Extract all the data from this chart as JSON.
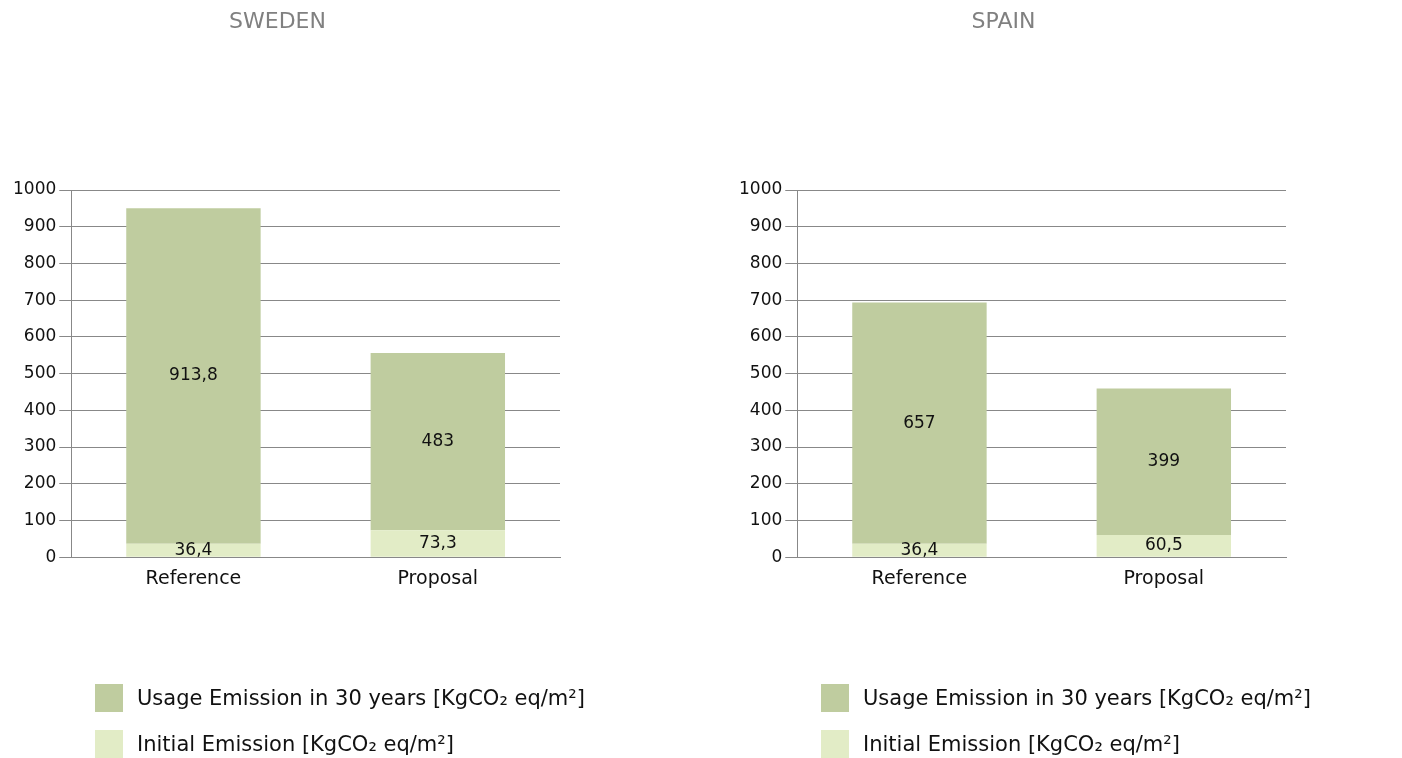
{
  "chart_data": [
    {
      "type": "bar",
      "title": "SWEDEN",
      "categories": [
        "Reference",
        "Proposal"
      ],
      "stacked": true,
      "ylim": [
        0,
        1000
      ],
      "yticks": [
        0,
        100,
        200,
        300,
        400,
        500,
        600,
        700,
        800,
        900,
        1000
      ],
      "grid": "y",
      "legend": "bottom",
      "series": [
        {
          "name": "Initial Emission [KgCO₂ eq/m²]",
          "color": "#e2ecc6",
          "values": [
            36.4,
            73.3
          ],
          "value_labels": [
            "36,4",
            "73,3"
          ]
        },
        {
          "name": "Usage Emission in 30 years [KgCO₂ eq/m²]",
          "color": "#bfcc9f",
          "values": [
            913.8,
            483
          ],
          "value_labels": [
            "913,8",
            "483"
          ]
        }
      ]
    },
    {
      "type": "bar",
      "title": "SPAIN",
      "categories": [
        "Reference",
        "Proposal"
      ],
      "stacked": true,
      "ylim": [
        0,
        1000
      ],
      "yticks": [
        0,
        100,
        200,
        300,
        400,
        500,
        600,
        700,
        800,
        900,
        1000
      ],
      "grid": "y",
      "legend": "bottom",
      "series": [
        {
          "name": "Initial Emission [KgCO₂ eq/m²]",
          "color": "#e2ecc6",
          "values": [
            36.4,
            60.5
          ],
          "value_labels": [
            "36,4",
            "60,5"
          ]
        },
        {
          "name": "Usage Emission in 30 years [KgCO₂ eq/m²]",
          "color": "#bfcc9f",
          "values": [
            657,
            399
          ],
          "value_labels": [
            "657",
            "399"
          ]
        }
      ]
    }
  ]
}
